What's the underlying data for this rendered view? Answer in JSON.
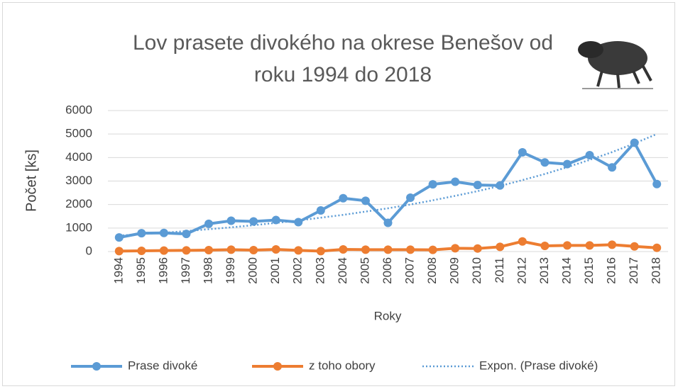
{
  "chart_data": {
    "type": "line",
    "title": "Lov prasete divokého na okrese Benešov od roku 1994 do 2018",
    "x_label": "Roky",
    "y_label": "Počet [ks]",
    "categories": [
      "1994",
      "1995",
      "1996",
      "1997",
      "1998",
      "1999",
      "2000",
      "2001",
      "2002",
      "2003",
      "2004",
      "2005",
      "2006",
      "2007",
      "2008",
      "2009",
      "2010",
      "2011",
      "2012",
      "2013",
      "2014",
      "2015",
      "2016",
      "2017",
      "2018"
    ],
    "series": [
      {
        "name": "Prase divoké",
        "color": "#5b9bd5",
        "markers": true,
        "values": [
          600,
          780,
          790,
          750,
          1180,
          1310,
          1280,
          1340,
          1250,
          1750,
          2270,
          2160,
          1220,
          2290,
          2860,
          2970,
          2830,
          2810,
          4220,
          3790,
          3720,
          4100,
          3580,
          4630,
          2870
        ]
      },
      {
        "name": "z toho obory",
        "color": "#ed7d31",
        "markers": true,
        "values": [
          20,
          30,
          40,
          50,
          60,
          80,
          60,
          90,
          50,
          20,
          90,
          80,
          80,
          80,
          70,
          140,
          130,
          200,
          430,
          240,
          260,
          260,
          290,
          220,
          160
        ]
      },
      {
        "name": "Expon. (Prase divoké)",
        "color": "#5b9bd5",
        "markers": false,
        "style": "dotted",
        "values": [
          680,
          740,
          800,
          870,
          950,
          1030,
          1120,
          1220,
          1320,
          1440,
          1560,
          1700,
          1840,
          2000,
          2180,
          2370,
          2570,
          2790,
          3040,
          3300,
          3590,
          3900,
          4230,
          4600,
          5000
        ]
      }
    ],
    "ylim": [
      0,
      6000
    ],
    "yticks": [
      0,
      1000,
      2000,
      3000,
      4000,
      5000,
      6000
    ],
    "grid": true,
    "legend": "bottom"
  }
}
